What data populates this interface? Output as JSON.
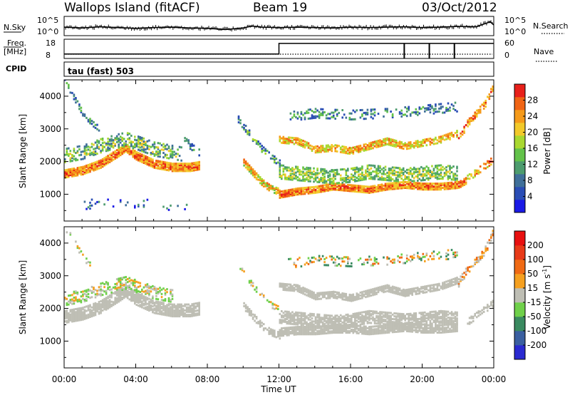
{
  "header": {
    "title": "Wallops Island (fitACF)",
    "beam": "Beam 19",
    "date": "03/Oct/2012"
  },
  "noise_panel": {
    "left_label": "N.Sky",
    "right_label": "N.Search",
    "left_ticks": [
      "10^5",
      "10^0"
    ],
    "right_ticks": [
      "10^5",
      "10^0"
    ],
    "sky_series": [
      [
        0,
        2.2
      ],
      [
        1,
        2.0
      ],
      [
        2,
        2.3
      ],
      [
        3,
        2.1
      ],
      [
        4,
        1.9
      ],
      [
        5,
        2.1
      ],
      [
        6,
        2.2
      ],
      [
        7,
        2.0
      ],
      [
        8,
        1.9
      ],
      [
        9,
        1.6
      ],
      [
        10,
        2.0
      ],
      [
        10.5,
        2.5
      ],
      [
        11,
        2.2
      ],
      [
        12,
        2.1
      ],
      [
        13,
        2.2
      ],
      [
        14,
        2.1
      ],
      [
        15,
        2.0
      ],
      [
        16,
        2.2
      ],
      [
        17,
        2.1
      ],
      [
        18,
        2.2
      ],
      [
        19,
        2.3
      ],
      [
        20,
        2.1
      ],
      [
        21,
        2.2
      ],
      [
        22,
        2.4
      ],
      [
        23,
        2.3
      ],
      [
        23.8,
        3.6
      ],
      [
        24,
        2.8
      ]
    ]
  },
  "freq_panel": {
    "left_label_1": "Freq.",
    "left_label_2": "[MHz]",
    "right_label": "Nave",
    "left_ticks": [
      "18",
      "8"
    ],
    "right_ticks": [
      "60",
      "0"
    ],
    "freq_series": [
      [
        0,
        10.3
      ],
      [
        12,
        10.3
      ],
      [
        12,
        15.8
      ],
      [
        24,
        15.8
      ]
    ],
    "nave_dips": [
      19.0,
      20.4,
      21.8
    ]
  },
  "cpid": {
    "label": "CPID",
    "program": "tau (fast) 503"
  },
  "x_axis": {
    "label": "Time UT",
    "ticks": [
      "00:00",
      "04:00",
      "08:00",
      "12:00",
      "16:00",
      "20:00",
      "00:00"
    ],
    "hours": [
      0,
      4,
      8,
      12,
      16,
      20,
      24
    ]
  },
  "chart_data": [
    {
      "type": "heatmap",
      "title": "Power",
      "ylabel": "Slant Range [km]",
      "ylim": [
        180,
        4500
      ],
      "xlim_hours": [
        0,
        24
      ],
      "yticks": [
        1000,
        2000,
        3000,
        4000
      ],
      "colorbar_label": "Power [dB]",
      "colorbar_ticks": [
        "4",
        "8",
        "12",
        "16",
        "20",
        "24",
        "28"
      ],
      "colorbar_colors": [
        "#1a1ae6",
        "#2a4db5",
        "#3f6f99",
        "#4d9c6e",
        "#63c24a",
        "#a9d830",
        "#f2c92a",
        "#f59a1a",
        "#f06414",
        "#e8201a"
      ],
      "bands": [
        {
          "t": [
            0,
            1,
            2,
            3,
            3.4,
            4,
            5,
            6,
            7,
            7.5
          ],
          "r": [
            1650,
            1750,
            1950,
            2300,
            2450,
            2200,
            1950,
            1850,
            1850,
            1900
          ],
          "w": 260,
          "dens": 0.95,
          "lv": [
            6,
            9
          ]
        },
        {
          "t": [
            0,
            1,
            2,
            3,
            3.4,
            4,
            5,
            6,
            6.5
          ],
          "r": [
            2200,
            2300,
            2500,
            2650,
            2700,
            2600,
            2400,
            2300,
            2250
          ],
          "w": 420,
          "dens": 0.45,
          "lv": [
            2,
            6
          ]
        },
        {
          "t": [
            0,
            0.5,
            1,
            1.5,
            2
          ],
          "r": [
            4500,
            4000,
            3500,
            3200,
            3000
          ],
          "w": 160,
          "dens": 0.45,
          "lv": [
            1,
            4
          ]
        },
        {
          "t": [
            6.5,
            7,
            7.5
          ],
          "r": [
            2900,
            2500,
            2300
          ],
          "w": 200,
          "dens": 0.35,
          "lv": [
            1,
            4
          ]
        },
        {
          "t": [
            10,
            10.5,
            11,
            11.5,
            12
          ],
          "r": [
            2000,
            1700,
            1400,
            1200,
            1100
          ],
          "w": 220,
          "dens": 0.8,
          "lv": [
            4,
            8
          ]
        },
        {
          "t": [
            9.7,
            10.4,
            11,
            11.6,
            12
          ],
          "r": [
            3300,
            2800,
            2400,
            2100,
            2000
          ],
          "w": 180,
          "dens": 0.5,
          "lv": [
            1,
            5
          ]
        },
        {
          "t": [
            12,
            13,
            14,
            15,
            16,
            17,
            18,
            19,
            20,
            21,
            22,
            22.5
          ],
          "r": [
            1000,
            1100,
            1150,
            1250,
            1200,
            1150,
            1250,
            1300,
            1250,
            1250,
            1300,
            1450
          ],
          "w": 190,
          "dens": 0.95,
          "lv": [
            6,
            9
          ]
        },
        {
          "t": [
            12,
            13,
            14,
            15,
            16,
            17,
            18,
            19,
            20,
            21,
            22
          ],
          "r": [
            1700,
            1650,
            1600,
            1550,
            1600,
            1700,
            1650,
            1600,
            1650,
            1700,
            1650
          ],
          "w": 420,
          "dens": 0.55,
          "lv": [
            3,
            6
          ]
        },
        {
          "t": [
            12,
            13,
            14,
            15,
            16,
            17,
            18,
            19,
            20,
            21,
            22
          ],
          "r": [
            2700,
            2650,
            2400,
            2450,
            2350,
            2500,
            2650,
            2500,
            2600,
            2700,
            2900
          ],
          "w": 220,
          "dens": 0.75,
          "lv": [
            5,
            8
          ]
        },
        {
          "t": [
            12.5,
            14,
            16,
            18,
            20,
            22
          ],
          "r": [
            3400,
            3500,
            3450,
            3500,
            3600,
            3700
          ],
          "w": 300,
          "dens": 0.25,
          "lv": [
            1,
            4
          ]
        },
        {
          "t": [
            22,
            22.5,
            23,
            23.5,
            24
          ],
          "r": [
            2700,
            3200,
            3500,
            3800,
            4400
          ],
          "w": 220,
          "dens": 0.55,
          "lv": [
            6,
            9
          ]
        },
        {
          "t": [
            22.5,
            23,
            23.5,
            24
          ],
          "r": [
            1500,
            1700,
            1900,
            2100
          ],
          "w": 200,
          "dens": 0.5,
          "lv": [
            5,
            9
          ]
        },
        {
          "t": [
            1,
            3,
            5,
            7
          ],
          "r": [
            700,
            800,
            700,
            650
          ],
          "w": 300,
          "dens": 0.08,
          "lv": [
            0,
            3
          ]
        }
      ]
    },
    {
      "type": "heatmap",
      "title": "Velocity",
      "ylabel": "Slant Range [km]",
      "ylim": [
        180,
        4500
      ],
      "xlim_hours": [
        0,
        24
      ],
      "yticks": [
        1000,
        2000,
        3000,
        4000
      ],
      "colorbar_label": "Velocity [m s^-1]",
      "colorbar_ticks": [
        "200",
        "100",
        "50",
        "15",
        "-15",
        "-50",
        "-100",
        "-200"
      ],
      "colorbar_colors": [
        "#2a2ad0",
        "#3a5fa0",
        "#3a8a60",
        "#6fd04a",
        "#bebeb4",
        "#f5a020",
        "#f06a14",
        "#e83a18",
        "#e81010"
      ],
      "bands": [
        {
          "t": [
            0,
            1,
            2,
            3,
            3.4,
            4,
            5,
            6,
            7,
            7.5
          ],
          "r": [
            1750,
            1850,
            2050,
            2400,
            2550,
            2300,
            2050,
            1950,
            1950,
            2000
          ],
          "w": 360,
          "dens": 0.85,
          "lv": [
            4,
            4
          ]
        },
        {
          "t": [
            0,
            1,
            2,
            3,
            3.4,
            4,
            5,
            6
          ],
          "r": [
            2300,
            2400,
            2600,
            2750,
            2800,
            2700,
            2500,
            2400
          ],
          "w": 380,
          "dens": 0.45,
          "lv": [
            3,
            5
          ]
        },
        {
          "t": [
            0,
            0.5,
            1,
            1.5
          ],
          "r": [
            4500,
            4100,
            3600,
            3300
          ],
          "w": 160,
          "dens": 0.3,
          "lv": [
            3,
            5
          ]
        },
        {
          "t": [
            10,
            10.5,
            11,
            11.5,
            12
          ],
          "r": [
            2100,
            1800,
            1500,
            1300,
            1200
          ],
          "w": 220,
          "dens": 0.6,
          "lv": [
            4,
            4
          ]
        },
        {
          "t": [
            9.8,
            10.4,
            11,
            11.6,
            12
          ],
          "r": [
            3300,
            2800,
            2400,
            2100,
            2000
          ],
          "w": 160,
          "dens": 0.4,
          "lv": [
            3,
            5
          ]
        },
        {
          "t": [
            12,
            13,
            14,
            15,
            16,
            17,
            18,
            19,
            20,
            21,
            22
          ],
          "r": [
            1300,
            1350,
            1350,
            1400,
            1400,
            1350,
            1400,
            1450,
            1400,
            1400,
            1450
          ],
          "w": 260,
          "dens": 0.9,
          "lv": [
            4,
            4
          ]
        },
        {
          "t": [
            12,
            13,
            14,
            15,
            16,
            17,
            18,
            19,
            20,
            21,
            22
          ],
          "r": [
            1750,
            1700,
            1650,
            1600,
            1650,
            1750,
            1700,
            1650,
            1700,
            1750,
            1700
          ],
          "w": 360,
          "dens": 0.75,
          "lv": [
            4,
            4
          ]
        },
        {
          "t": [
            12,
            13,
            14,
            15,
            16,
            17,
            18,
            19,
            20,
            21,
            22
          ],
          "r": [
            2700,
            2650,
            2400,
            2450,
            2350,
            2500,
            2650,
            2500,
            2600,
            2700,
            2900
          ],
          "w": 220,
          "dens": 0.85,
          "lv": [
            4,
            4
          ]
        },
        {
          "t": [
            12.5,
            14,
            16,
            18,
            20,
            22
          ],
          "r": [
            3400,
            3500,
            3450,
            3500,
            3600,
            3700
          ],
          "w": 300,
          "dens": 0.2,
          "lv": [
            2,
            6
          ]
        },
        {
          "t": [
            22,
            22.5,
            23,
            23.5,
            24
          ],
          "r": [
            2800,
            3200,
            3500,
            3800,
            4400
          ],
          "w": 240,
          "dens": 0.5,
          "lv": [
            4,
            6
          ]
        },
        {
          "t": [
            22.5,
            23,
            23.5,
            24
          ],
          "r": [
            1600,
            1800,
            2000,
            2200
          ],
          "w": 200,
          "dens": 0.5,
          "lv": [
            4,
            4
          ]
        }
      ]
    }
  ]
}
